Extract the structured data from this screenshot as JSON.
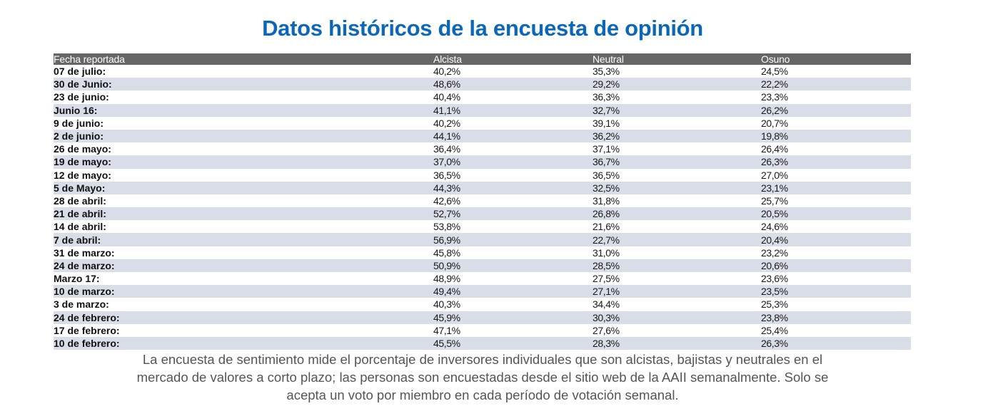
{
  "title": "Datos históricos de la encuesta de opinión",
  "table": {
    "headers": [
      "Fecha reportada",
      "Alcista",
      "Neutral",
      "Osuno"
    ],
    "rows": [
      {
        "date": "07 de julio:",
        "alcista": "40,2%",
        "neutral": "35,3%",
        "osuno": "24,5%"
      },
      {
        "date": "30 de Junio:",
        "alcista": "48,6%",
        "neutral": "29,2%",
        "osuno": "22,2%"
      },
      {
        "date": "23 de junio:",
        "alcista": "40,4%",
        "neutral": "36,3%",
        "osuno": "23,3%"
      },
      {
        "date": "Junio 16:",
        "alcista": "41,1%",
        "neutral": "32,7%",
        "osuno": "26,2%"
      },
      {
        "date": "9 de junio:",
        "alcista": "40,2%",
        "neutral": "39,1%",
        "osuno": "20,7%"
      },
      {
        "date": "2 de junio:",
        "alcista": "44,1%",
        "neutral": "36,2%",
        "osuno": "19,8%"
      },
      {
        "date": "26 de mayo:",
        "alcista": "36,4%",
        "neutral": "37,1%",
        "osuno": "26,4%"
      },
      {
        "date": "19 de mayo:",
        "alcista": "37,0%",
        "neutral": "36,7%",
        "osuno": "26,3%"
      },
      {
        "date": "12 de mayo:",
        "alcista": "36,5%",
        "neutral": "36,5%",
        "osuno": "27,0%"
      },
      {
        "date": "5 de Mayo:",
        "alcista": "44,3%",
        "neutral": "32,5%",
        "osuno": "23,1%"
      },
      {
        "date": "28 de abril:",
        "alcista": "42,6%",
        "neutral": "31,8%",
        "osuno": "25,7%"
      },
      {
        "date": "21 de abril:",
        "alcista": "52,7%",
        "neutral": "26,8%",
        "osuno": "20,5%"
      },
      {
        "date": "14 de abril:",
        "alcista": "53,8%",
        "neutral": "21,6%",
        "osuno": "24,6%"
      },
      {
        "date": "7 de abril:",
        "alcista": "56,9%",
        "neutral": "22,7%",
        "osuno": "20,4%"
      },
      {
        "date": "31 de marzo:",
        "alcista": "45,8%",
        "neutral": "31,0%",
        "osuno": "23,2%"
      },
      {
        "date": "24 de marzo:",
        "alcista": "50,9%",
        "neutral": "28,5%",
        "osuno": "20,6%"
      },
      {
        "date": "Marzo 17:",
        "alcista": "48,9%",
        "neutral": "27,5%",
        "osuno": "23,6%"
      },
      {
        "date": "10 de marzo:",
        "alcista": "49,4%",
        "neutral": "27,1%",
        "osuno": "23,5%"
      },
      {
        "date": "3 de marzo:",
        "alcista": "40,3%",
        "neutral": "34,4%",
        "osuno": "25,3%"
      },
      {
        "date": "24 de febrero:",
        "alcista": "45,9%",
        "neutral": "30,3%",
        "osuno": "23,8%"
      },
      {
        "date": "17 de febrero:",
        "alcista": "47,1%",
        "neutral": "27,6%",
        "osuno": "25,4%"
      },
      {
        "date": "10 de febrero:",
        "alcista": "45,5%",
        "neutral": "28,3%",
        "osuno": "26,3%"
      }
    ]
  },
  "footer": {
    "lines": [
      "La encuesta de sentimiento mide el porcentaje de inversores individuales que son alcistas, bajistas y neutrales en el",
      "mercado de valores a corto plazo; las personas son encuestadas desde el sitio web de la AAII semanalmente. Solo se",
      "acepta un voto por miembro en cada período de votación semanal."
    ]
  },
  "colors": {
    "title": "#0b68b8",
    "header_bg": "#666666",
    "stripe_bg": "#d8dde8",
    "footer_text": "#555555"
  }
}
